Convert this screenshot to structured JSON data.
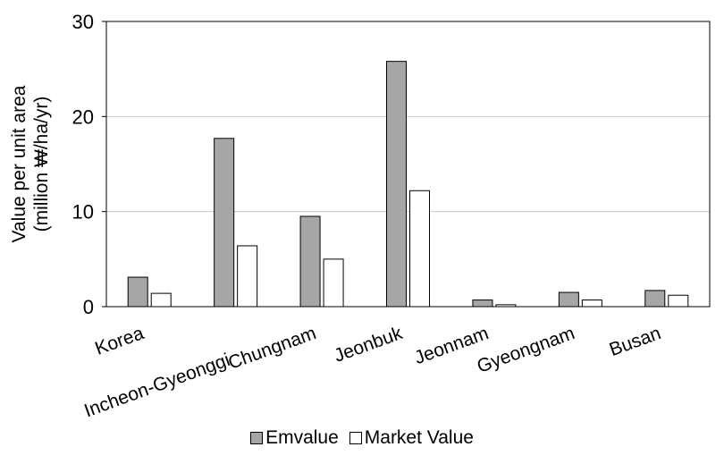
{
  "chart_data": {
    "type": "bar",
    "categories": [
      "Korea",
      "Incheon-Gyeonggi",
      "Chungnam",
      "Jeonbuk",
      "Jeonnam",
      "Gyeongnam",
      "Busan"
    ],
    "series": [
      {
        "name": "Emvalue",
        "values": [
          3.1,
          17.7,
          9.5,
          25.8,
          0.7,
          1.5,
          1.7
        ],
        "color": "#a6a6a6"
      },
      {
        "name": "Market Value",
        "values": [
          1.4,
          6.4,
          5.0,
          12.2,
          0.2,
          0.7,
          1.2
        ],
        "color": "#ffffff"
      }
    ],
    "ylabel_line1": "Value per unit area",
    "ylabel_line2": "(million ₩/ha/yr)",
    "ylim": [
      0,
      30
    ],
    "yticks": [
      0,
      10,
      20,
      30
    ],
    "grid": true,
    "legend_position": "bottom"
  }
}
